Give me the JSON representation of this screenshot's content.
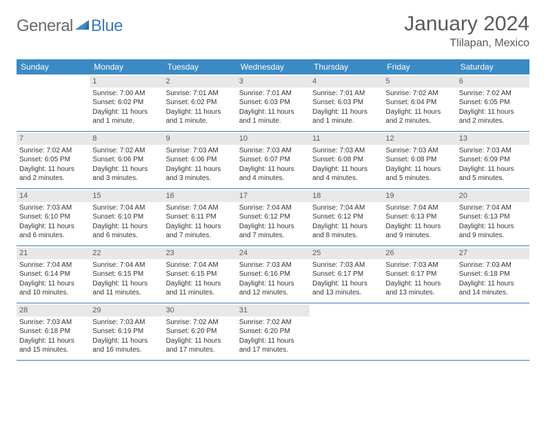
{
  "logo": {
    "textA": "General",
    "textB": "Blue"
  },
  "title": "January 2024",
  "location": "Tlilapan, Mexico",
  "colors": {
    "headerBar": "#3b8ac4",
    "headerText": "#ffffff",
    "dayNumBg": "#e8e8e8",
    "weekBorder": "#3b7bb8",
    "logoGray": "#6b6b6b",
    "logoBlue": "#3b7bb8",
    "titleGray": "#5a5a5a"
  },
  "dayNames": [
    "Sunday",
    "Monday",
    "Tuesday",
    "Wednesday",
    "Thursday",
    "Friday",
    "Saturday"
  ],
  "weeks": [
    [
      {
        "empty": true
      },
      {
        "num": "1",
        "sunrise": "Sunrise: 7:00 AM",
        "sunset": "Sunset: 6:02 PM",
        "day1": "Daylight: 11 hours",
        "day2": "and 1 minute."
      },
      {
        "num": "2",
        "sunrise": "Sunrise: 7:01 AM",
        "sunset": "Sunset: 6:02 PM",
        "day1": "Daylight: 11 hours",
        "day2": "and 1 minute."
      },
      {
        "num": "3",
        "sunrise": "Sunrise: 7:01 AM",
        "sunset": "Sunset: 6:03 PM",
        "day1": "Daylight: 11 hours",
        "day2": "and 1 minute."
      },
      {
        "num": "4",
        "sunrise": "Sunrise: 7:01 AM",
        "sunset": "Sunset: 6:03 PM",
        "day1": "Daylight: 11 hours",
        "day2": "and 1 minute."
      },
      {
        "num": "5",
        "sunrise": "Sunrise: 7:02 AM",
        "sunset": "Sunset: 6:04 PM",
        "day1": "Daylight: 11 hours",
        "day2": "and 2 minutes."
      },
      {
        "num": "6",
        "sunrise": "Sunrise: 7:02 AM",
        "sunset": "Sunset: 6:05 PM",
        "day1": "Daylight: 11 hours",
        "day2": "and 2 minutes."
      }
    ],
    [
      {
        "num": "7",
        "sunrise": "Sunrise: 7:02 AM",
        "sunset": "Sunset: 6:05 PM",
        "day1": "Daylight: 11 hours",
        "day2": "and 2 minutes."
      },
      {
        "num": "8",
        "sunrise": "Sunrise: 7:02 AM",
        "sunset": "Sunset: 6:06 PM",
        "day1": "Daylight: 11 hours",
        "day2": "and 3 minutes."
      },
      {
        "num": "9",
        "sunrise": "Sunrise: 7:03 AM",
        "sunset": "Sunset: 6:06 PM",
        "day1": "Daylight: 11 hours",
        "day2": "and 3 minutes."
      },
      {
        "num": "10",
        "sunrise": "Sunrise: 7:03 AM",
        "sunset": "Sunset: 6:07 PM",
        "day1": "Daylight: 11 hours",
        "day2": "and 4 minutes."
      },
      {
        "num": "11",
        "sunrise": "Sunrise: 7:03 AM",
        "sunset": "Sunset: 6:08 PM",
        "day1": "Daylight: 11 hours",
        "day2": "and 4 minutes."
      },
      {
        "num": "12",
        "sunrise": "Sunrise: 7:03 AM",
        "sunset": "Sunset: 6:08 PM",
        "day1": "Daylight: 11 hours",
        "day2": "and 5 minutes."
      },
      {
        "num": "13",
        "sunrise": "Sunrise: 7:03 AM",
        "sunset": "Sunset: 6:09 PM",
        "day1": "Daylight: 11 hours",
        "day2": "and 5 minutes."
      }
    ],
    [
      {
        "num": "14",
        "sunrise": "Sunrise: 7:03 AM",
        "sunset": "Sunset: 6:10 PM",
        "day1": "Daylight: 11 hours",
        "day2": "and 6 minutes."
      },
      {
        "num": "15",
        "sunrise": "Sunrise: 7:04 AM",
        "sunset": "Sunset: 6:10 PM",
        "day1": "Daylight: 11 hours",
        "day2": "and 6 minutes."
      },
      {
        "num": "16",
        "sunrise": "Sunrise: 7:04 AM",
        "sunset": "Sunset: 6:11 PM",
        "day1": "Daylight: 11 hours",
        "day2": "and 7 minutes."
      },
      {
        "num": "17",
        "sunrise": "Sunrise: 7:04 AM",
        "sunset": "Sunset: 6:12 PM",
        "day1": "Daylight: 11 hours",
        "day2": "and 7 minutes."
      },
      {
        "num": "18",
        "sunrise": "Sunrise: 7:04 AM",
        "sunset": "Sunset: 6:12 PM",
        "day1": "Daylight: 11 hours",
        "day2": "and 8 minutes."
      },
      {
        "num": "19",
        "sunrise": "Sunrise: 7:04 AM",
        "sunset": "Sunset: 6:13 PM",
        "day1": "Daylight: 11 hours",
        "day2": "and 9 minutes."
      },
      {
        "num": "20",
        "sunrise": "Sunrise: 7:04 AM",
        "sunset": "Sunset: 6:13 PM",
        "day1": "Daylight: 11 hours",
        "day2": "and 9 minutes."
      }
    ],
    [
      {
        "num": "21",
        "sunrise": "Sunrise: 7:04 AM",
        "sunset": "Sunset: 6:14 PM",
        "day1": "Daylight: 11 hours",
        "day2": "and 10 minutes."
      },
      {
        "num": "22",
        "sunrise": "Sunrise: 7:04 AM",
        "sunset": "Sunset: 6:15 PM",
        "day1": "Daylight: 11 hours",
        "day2": "and 11 minutes."
      },
      {
        "num": "23",
        "sunrise": "Sunrise: 7:04 AM",
        "sunset": "Sunset: 6:15 PM",
        "day1": "Daylight: 11 hours",
        "day2": "and 11 minutes."
      },
      {
        "num": "24",
        "sunrise": "Sunrise: 7:03 AM",
        "sunset": "Sunset: 6:16 PM",
        "day1": "Daylight: 11 hours",
        "day2": "and 12 minutes."
      },
      {
        "num": "25",
        "sunrise": "Sunrise: 7:03 AM",
        "sunset": "Sunset: 6:17 PM",
        "day1": "Daylight: 11 hours",
        "day2": "and 13 minutes."
      },
      {
        "num": "26",
        "sunrise": "Sunrise: 7:03 AM",
        "sunset": "Sunset: 6:17 PM",
        "day1": "Daylight: 11 hours",
        "day2": "and 13 minutes."
      },
      {
        "num": "27",
        "sunrise": "Sunrise: 7:03 AM",
        "sunset": "Sunset: 6:18 PM",
        "day1": "Daylight: 11 hours",
        "day2": "and 14 minutes."
      }
    ],
    [
      {
        "num": "28",
        "sunrise": "Sunrise: 7:03 AM",
        "sunset": "Sunset: 6:18 PM",
        "day1": "Daylight: 11 hours",
        "day2": "and 15 minutes."
      },
      {
        "num": "29",
        "sunrise": "Sunrise: 7:03 AM",
        "sunset": "Sunset: 6:19 PM",
        "day1": "Daylight: 11 hours",
        "day2": "and 16 minutes."
      },
      {
        "num": "30",
        "sunrise": "Sunrise: 7:02 AM",
        "sunset": "Sunset: 6:20 PM",
        "day1": "Daylight: 11 hours",
        "day2": "and 17 minutes."
      },
      {
        "num": "31",
        "sunrise": "Sunrise: 7:02 AM",
        "sunset": "Sunset: 6:20 PM",
        "day1": "Daylight: 11 hours",
        "day2": "and 17 minutes."
      },
      {
        "empty": true
      },
      {
        "empty": true
      },
      {
        "empty": true
      }
    ]
  ]
}
